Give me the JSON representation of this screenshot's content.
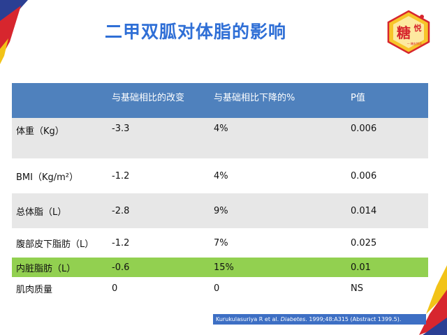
{
  "title": "二甲双胍对体脂的影响",
  "logo": {
    "main_text": "糖",
    "side_text": "悦",
    "tagline": "— 糖友悦读 —"
  },
  "table": {
    "headers": [
      "",
      "与基础相比的改变",
      "与基础相比下降的%",
      "P值"
    ],
    "rows": [
      {
        "label": "体重（Kg）",
        "change": "-3.3",
        "percent": "4%",
        "p": "0.006"
      },
      {
        "label": "BMI（Kg/m²）",
        "change": "-1.2",
        "percent": "4%",
        "p": "0.006"
      },
      {
        "label": "总体脂（L）",
        "change": "-2.8",
        "percent": "9%",
        "p": "0.014"
      },
      {
        "label": "腹部皮下脂肪（L）",
        "change": "-1.2",
        "percent": "7%",
        "p": "0.025"
      },
      {
        "label": "内脏脂肪（L）",
        "change": "-0.6",
        "percent": "15%",
        "p": "0.01"
      },
      {
        "label": "肌肉质量",
        "change": "0",
        "percent": "0",
        "p": "NS"
      }
    ]
  },
  "citation": {
    "authors": "Kurukulasuriya R et al.",
    "journal": "Diabetes",
    "details": ". 1999;48:A315 (Abstract 1399.5)."
  },
  "colors": {
    "title": "#2f6fd6",
    "header_bg": "#4f81bd",
    "row_grey": "#e7e7e7",
    "row_highlight": "#92d050",
    "citation_bg": "#3d6fc4",
    "deco_red": "#d7262e",
    "deco_blue": "#2b3f93",
    "deco_yellow": "#f2c318"
  }
}
